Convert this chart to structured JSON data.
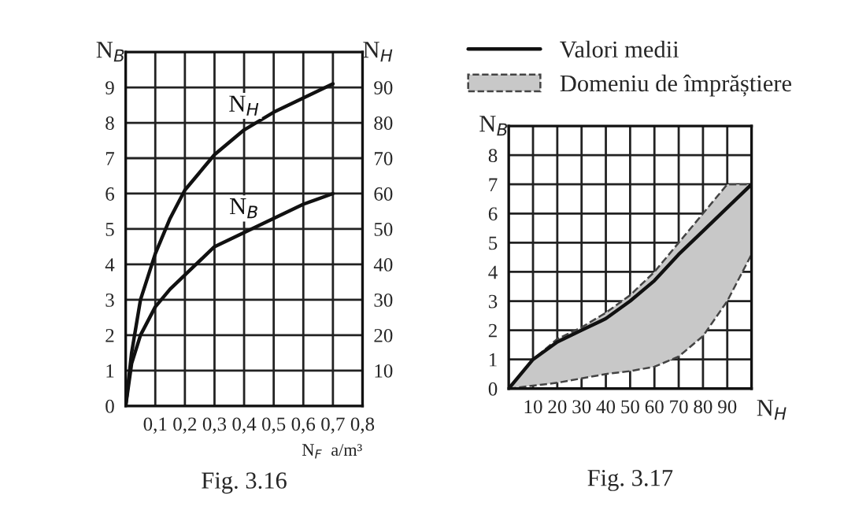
{
  "chart_data": [
    {
      "type": "line",
      "title": "Fig. 3.16",
      "xlabel": "N$_{F}$  a/m³",
      "ylabel": "N$_{B}$",
      "y2label": "N$_{H}$",
      "xlim": [
        0,
        0.8
      ],
      "xticks": [
        {
          "value": 0.1,
          "label": "0,1"
        },
        {
          "value": 0.2,
          "label": "0,2"
        },
        {
          "value": 0.3,
          "label": "0,3"
        },
        {
          "value": 0.4,
          "label": "0,4"
        },
        {
          "value": 0.5,
          "label": "0,5"
        },
        {
          "value": 0.6,
          "label": "0,6"
        },
        {
          "value": 0.7,
          "label": "0,7"
        },
        {
          "value": 0.8,
          "label": "0,8"
        }
      ],
      "ylim": [
        0,
        10
      ],
      "yticks": [
        0,
        1,
        2,
        3,
        4,
        5,
        6,
        7,
        8,
        9
      ],
      "y2lim": [
        0,
        100
      ],
      "y2ticks": [
        10,
        20,
        30,
        40,
        50,
        60,
        70,
        80,
        90
      ],
      "grid": true,
      "line_style": "solid",
      "series": [
        {
          "name": "N$_{H}$",
          "color": "#111111",
          "axis": "y2",
          "x": [
            0,
            0.02,
            0.05,
            0.1,
            0.15,
            0.2,
            0.3,
            0.4,
            0.5,
            0.6,
            0.7
          ],
          "values": [
            0,
            15,
            30,
            43,
            53,
            61,
            71,
            78,
            83,
            87,
            91
          ]
        },
        {
          "name": "N$_{B}$",
          "color": "#111111",
          "x": [
            0,
            0.02,
            0.05,
            0.1,
            0.15,
            0.2,
            0.3,
            0.4,
            0.5,
            0.6,
            0.7
          ],
          "values": [
            0,
            1.2,
            2,
            2.8,
            3.3,
            3.7,
            4.5,
            4.9,
            5.3,
            5.7,
            6
          ]
        }
      ]
    },
    {
      "type": "line",
      "title": "Fig. 3.17",
      "xlabel": "N$_{H}$",
      "ylabel": "N$_{B}$",
      "xlim": [
        0,
        100
      ],
      "xticks": [
        10,
        20,
        30,
        40,
        50,
        60,
        70,
        80,
        90
      ],
      "ylim": [
        0,
        9
      ],
      "yticks": [
        0,
        1,
        2,
        3,
        4,
        5,
        6,
        7,
        8
      ],
      "grid": true,
      "legend": "top",
      "series": [
        {
          "name": "Valori medii",
          "color": "#111111",
          "x": [
            0,
            10,
            20,
            30,
            40,
            50,
            60,
            70,
            80,
            90,
            100
          ],
          "values": [
            0,
            1,
            1.6,
            2,
            2.4,
            3,
            3.7,
            4.6,
            5.4,
            6.2,
            7
          ]
        },
        {
          "name": "Domeniu de împrăștiere",
          "type": "area",
          "color": "#c8c8c8",
          "line_style": "dashed",
          "x": [
            0,
            10,
            20,
            30,
            40,
            50,
            60,
            70,
            80,
            90,
            100
          ],
          "values": [
            null,
            null,
            null,
            null,
            null,
            null,
            null,
            null,
            null,
            null,
            null
          ],
          "upper": [
            0,
            1,
            1.7,
            2.1,
            2.6,
            3.2,
            4,
            5,
            6,
            7,
            7
          ],
          "lower": [
            0,
            0.1,
            0.2,
            0.35,
            0.5,
            0.6,
            0.75,
            1.1,
            1.8,
            3,
            4.6
          ]
        }
      ]
    }
  ]
}
